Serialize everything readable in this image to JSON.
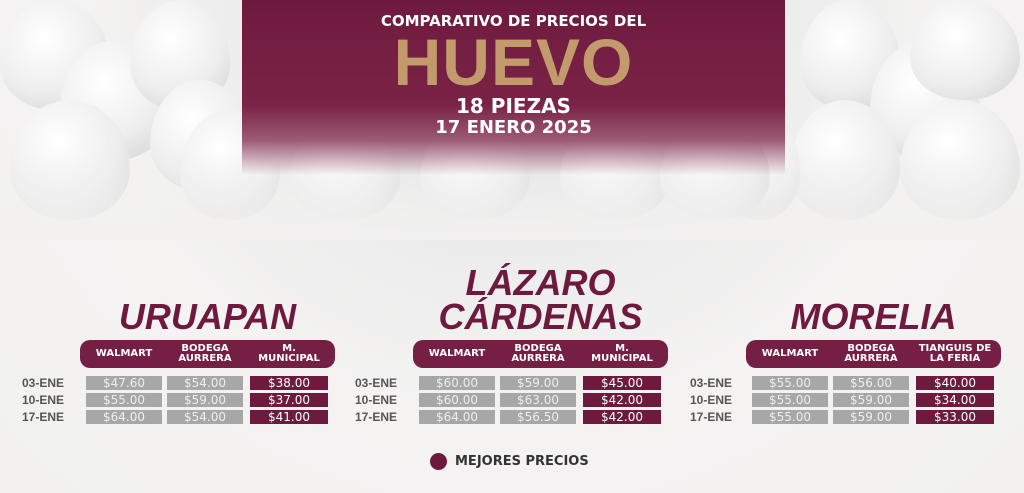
{
  "header": {
    "subtitle": "COMPARATIVO DE PRECIOS DEL",
    "title": "HUEVO",
    "pieces": "18 PIEZAS",
    "date": "17 ENERO 2025"
  },
  "colors": {
    "brand": "#6e1a3e",
    "gold": "#c39a6b",
    "regular_price": "#a7a7a7"
  },
  "cities": [
    {
      "name_lines": [
        "URUAPAN"
      ],
      "columns": [
        "WALMART",
        "BODEGA AURRERA",
        "M. MUNICIPAL"
      ],
      "rows": [
        {
          "date": "03-ENE",
          "prices": [
            "$47.60",
            "$54.00",
            "$38.00"
          ]
        },
        {
          "date": "10-ENE",
          "prices": [
            "$55.00",
            "$59.00",
            "$37.00"
          ]
        },
        {
          "date": "17-ENE",
          "prices": [
            "$64.00",
            "$54.00",
            "$41.00"
          ]
        }
      ]
    },
    {
      "name_lines": [
        "LÁZARO",
        "CÁRDENAS"
      ],
      "columns": [
        "WALMART",
        "BODEGA AURRERA",
        "M. MUNICIPAL"
      ],
      "rows": [
        {
          "date": "03-ENE",
          "prices": [
            "$60.00",
            "$59.00",
            "$45.00"
          ]
        },
        {
          "date": "10-ENE",
          "prices": [
            "$60.00",
            "$63.00",
            "$42.00"
          ]
        },
        {
          "date": "17-ENE",
          "prices": [
            "$64.00",
            "$56.50",
            "$42.00"
          ]
        }
      ]
    },
    {
      "name_lines": [
        "MORELIA"
      ],
      "columns": [
        "WALMART",
        "BODEGA AURRERA",
        "TIANGUIS DE LA FERIA"
      ],
      "rows": [
        {
          "date": "03-ENE",
          "prices": [
            "$55.00",
            "$56.00",
            "$40.00"
          ]
        },
        {
          "date": "10-ENE",
          "prices": [
            "$55.00",
            "$59.00",
            "$34.00"
          ]
        },
        {
          "date": "17-ENE",
          "prices": [
            "$55.00",
            "$59.00",
            "$33.00"
          ]
        }
      ]
    }
  ],
  "legend": {
    "label": "MEJORES PRECIOS"
  }
}
